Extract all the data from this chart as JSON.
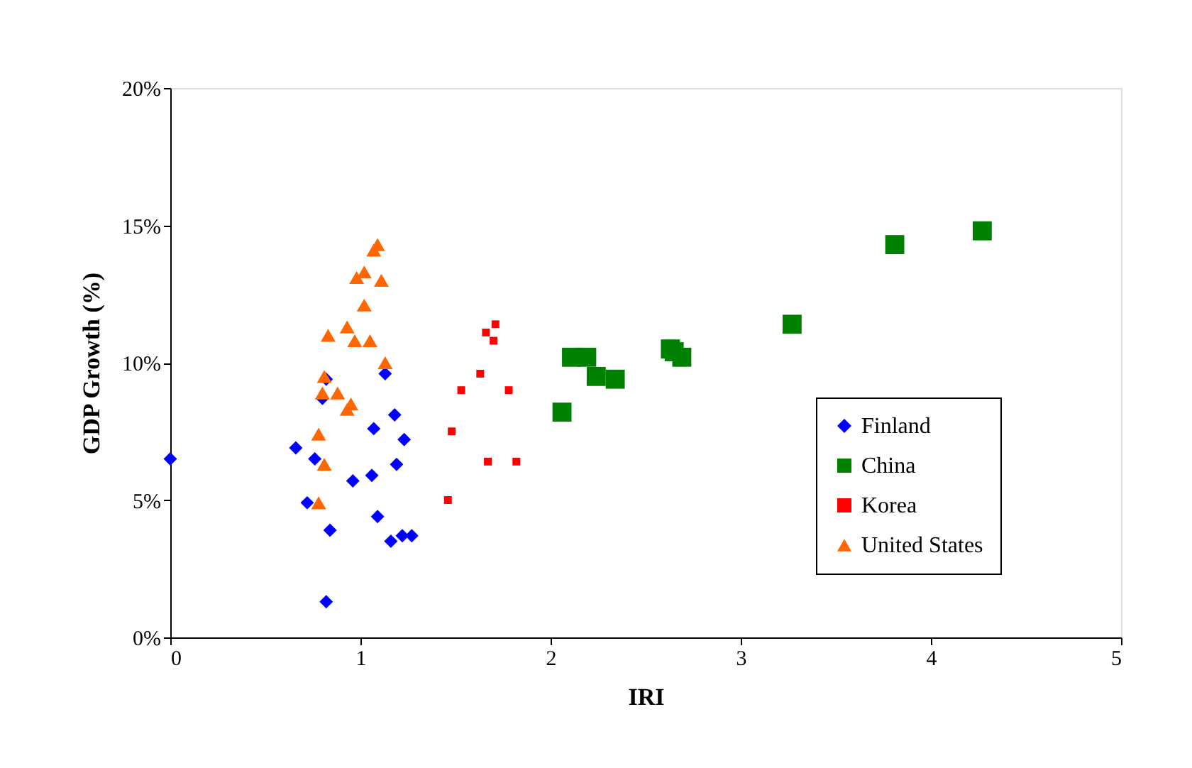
{
  "chart_data": {
    "type": "scatter",
    "xlabel": "IRI",
    "ylabel": "GDP Growth (%)",
    "xlim": [
      0,
      5
    ],
    "xticks": [
      0,
      1,
      2,
      3,
      4,
      5
    ],
    "ylim": [
      0,
      20
    ],
    "yticks": [
      {
        "value": 0,
        "label": "0%"
      },
      {
        "value": 5,
        "label": "5%"
      },
      {
        "value": 10,
        "label": "10%"
      },
      {
        "value": 15,
        "label": "15%"
      },
      {
        "value": 20,
        "label": "20%"
      }
    ],
    "grid": false,
    "legend": "right",
    "series": [
      {
        "name": "Finland",
        "color": "#0000ff",
        "marker": "diamond",
        "x": [
          0,
          0.66,
          0.76,
          0.72,
          0.8,
          0.82,
          0.84,
          0.82,
          0.96,
          1.06,
          1.07,
          1.09,
          1.13,
          1.18,
          1.19,
          1.23,
          1.16,
          1.22,
          1.27
        ],
        "values": [
          6.5,
          6.9,
          6.5,
          4.9,
          8.7,
          9.4,
          3.9,
          1.3,
          5.7,
          5.9,
          7.6,
          4.4,
          9.6,
          8.1,
          6.3,
          7.2,
          3.5,
          3.7,
          3.7
        ]
      },
      {
        "name": "China",
        "color": "#008000",
        "marker": "square",
        "x": [
          2.06,
          2.11,
          2.19,
          2.24,
          2.34,
          2.63,
          2.65,
          2.69,
          3.27,
          3.81,
          4.27
        ],
        "values": [
          8.2,
          10.2,
          10.2,
          9.5,
          9.4,
          10.5,
          10.4,
          10.2,
          11.4,
          14.3,
          14.8
        ]
      },
      {
        "name": "Korea",
        "color": "#ff0000",
        "marker": "square",
        "x": [
          1.46,
          1.48,
          1.53,
          1.63,
          1.66,
          1.71,
          1.7,
          1.67,
          1.78,
          1.82
        ],
        "values": [
          5.0,
          7.5,
          9.0,
          9.6,
          11.1,
          11.4,
          10.8,
          6.4,
          9.0,
          6.4
        ]
      },
      {
        "name": "United States",
        "color": "#ff6600",
        "marker": "triangle",
        "x": [
          1.09,
          1.07,
          0.98,
          1.02,
          1.11,
          1.02,
          0.93,
          0.83,
          0.97,
          1.05,
          1.13,
          0.81,
          0.8,
          0.88,
          0.95,
          0.93,
          0.78,
          0.81,
          0.78
        ],
        "values": [
          14.3,
          14.1,
          13.1,
          13.3,
          13.0,
          12.1,
          11.3,
          11.0,
          10.8,
          10.8,
          10.0,
          9.5,
          8.9,
          8.9,
          8.5,
          8.3,
          7.4,
          6.3,
          4.9
        ]
      }
    ]
  }
}
